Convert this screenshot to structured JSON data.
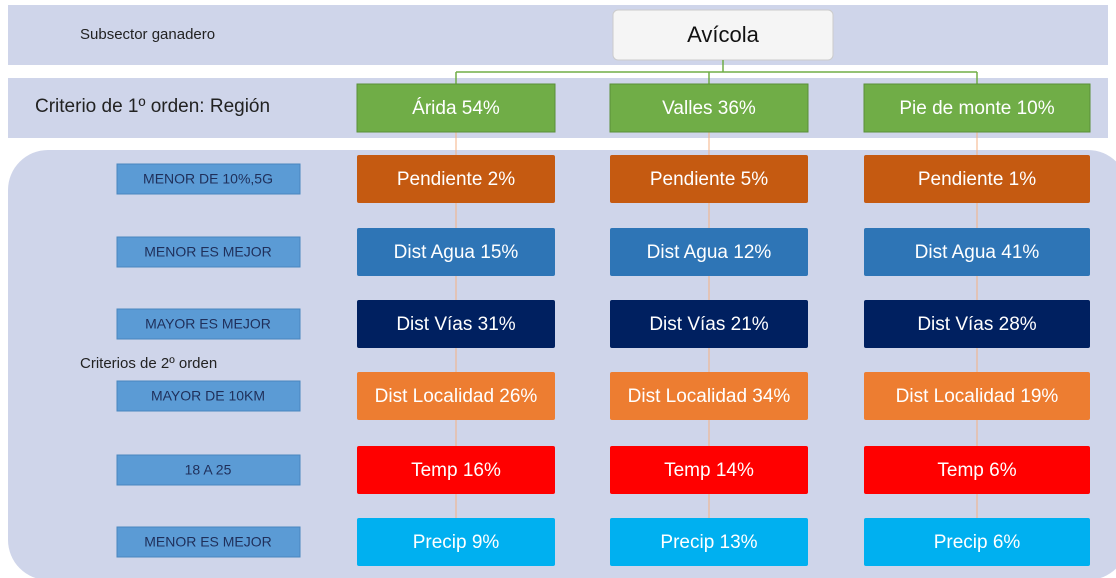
{
  "subsector_label": "Subsector ganadero",
  "root": "Avícola",
  "first_order_label": "Criterio de 1º orden: Región",
  "second_order_label": "Criterios de 2º orden",
  "rules": [
    "MENOR DE 10%,5G",
    "MENOR ES MEJOR",
    "MAYOR ES MEJOR",
    "MAYOR DE 10KM",
    "18 A 25",
    "MENOR ES MEJOR"
  ],
  "columns": [
    {
      "region": "Árida 54%",
      "criteria": [
        "Pendiente 2%",
        "Dist Agua 15%",
        "Dist Vías 31%",
        "Dist Localidad  26%",
        "Temp 16%",
        "Precip 9%"
      ]
    },
    {
      "region": "Valles 36%",
      "criteria": [
        "Pendiente 5%",
        "Dist Agua 12%",
        "Dist Vías 21%",
        "Dist Localidad 34%",
        "Temp 14%",
        "Precip 13%"
      ]
    },
    {
      "region": "Pie de monte  10%",
      "criteria": [
        "Pendiente 1%",
        "Dist Agua 41%",
        "Dist Vías 28%",
        "Dist Localidad 19%",
        "Temp 6%",
        "Precip 6%"
      ]
    }
  ]
}
